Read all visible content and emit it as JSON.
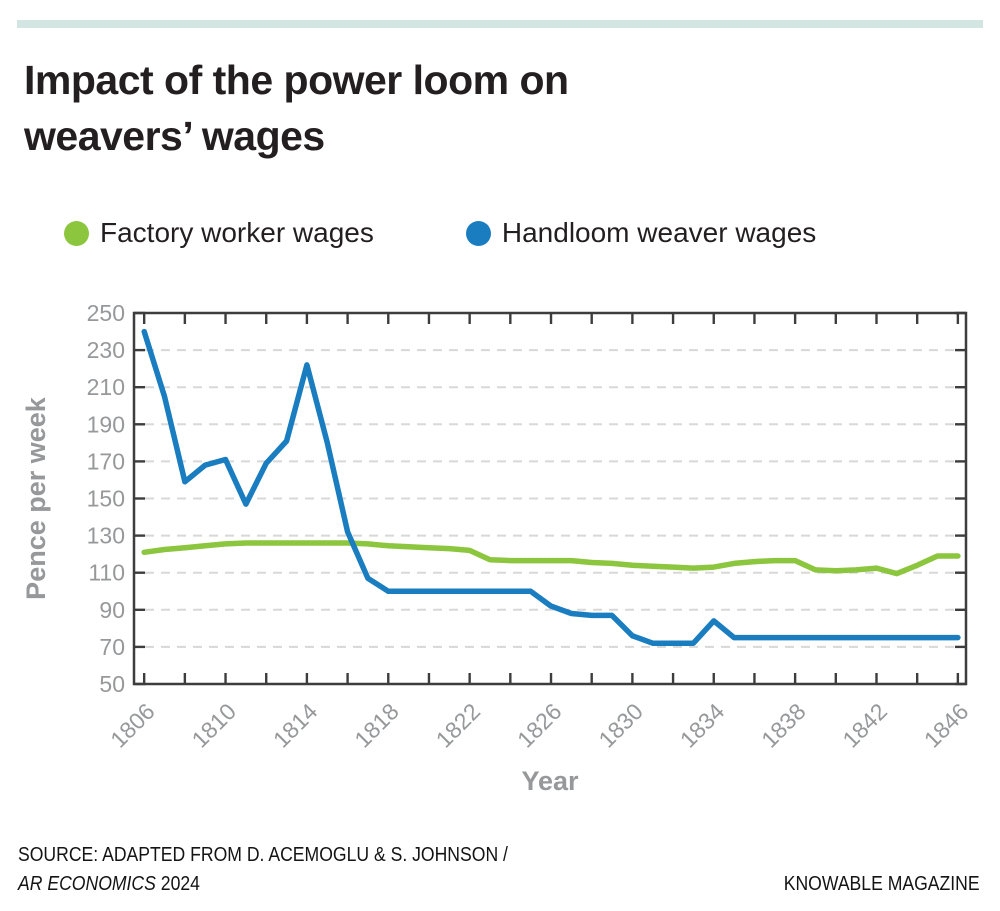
{
  "accent_bar": {
    "color": "#d3e5e1"
  },
  "title": "Impact of the power loom on weavers’ wages",
  "legend": {
    "items": [
      {
        "label": "Factory worker wages",
        "color": "#8cc63e"
      },
      {
        "label": "Handloom weaver wages",
        "color": "#1a7dc0"
      }
    ]
  },
  "chart_data": {
    "type": "line",
    "xlabel": "Year",
    "ylabel": "Pence per week",
    "xlim": [
      1805.5,
      1846.4
    ],
    "ylim": [
      50,
      250
    ],
    "yticks": [
      50,
      70,
      90,
      110,
      130,
      150,
      170,
      190,
      210,
      230,
      250
    ],
    "xtick_labels": [
      1806,
      1810,
      1814,
      1818,
      1822,
      1826,
      1830,
      1834,
      1838,
      1842,
      1846
    ],
    "minor_xtick_step": 2,
    "grid": {
      "horizontal": true,
      "style": "dashed",
      "color": "#d8d8d8"
    },
    "axis_color": "#3d3d3d",
    "tick_label_color": "#96989a",
    "x": [
      1806,
      1807,
      1808,
      1809,
      1810,
      1811,
      1812,
      1813,
      1814,
      1815,
      1816,
      1817,
      1818,
      1819,
      1820,
      1821,
      1822,
      1823,
      1824,
      1825,
      1826,
      1827,
      1828,
      1829,
      1830,
      1831,
      1832,
      1833,
      1834,
      1835,
      1836,
      1837,
      1838,
      1839,
      1840,
      1841,
      1842,
      1843,
      1844,
      1845,
      1846
    ],
    "series": [
      {
        "name": "Factory worker wages",
        "color": "#8cc63e",
        "values": [
          121,
          122.5,
          123.5,
          124.5,
          125.5,
          126,
          126,
          126,
          126,
          126,
          126,
          125.5,
          124.5,
          124,
          123.5,
          123,
          122,
          117,
          116.5,
          116.5,
          116.5,
          116.5,
          115.5,
          115,
          114,
          113.5,
          113,
          112.5,
          113,
          115,
          116,
          116.5,
          116.5,
          111.5,
          111,
          111.5,
          112.5,
          109.5,
          114,
          119,
          119
        ]
      },
      {
        "name": "Handloom weaver wages",
        "color": "#1a7dc0",
        "values": [
          240,
          205,
          159,
          168,
          171,
          147,
          169,
          181,
          222,
          180,
          132,
          107,
          100,
          100,
          100,
          100,
          100,
          100,
          100,
          100,
          92,
          88,
          87,
          87,
          76,
          72,
          72,
          72,
          84,
          75,
          75,
          75,
          75,
          75,
          75,
          75,
          75,
          75,
          75,
          75,
          75
        ]
      }
    ]
  },
  "source": {
    "line1": "SOURCE: ADAPTED FROM D. ACEMOGLU & S. JOHNSON /",
    "line2_italic": "AR ECONOMICS",
    "line2_year": " 2024",
    "credit": "KNOWABLE MAGAZINE"
  }
}
